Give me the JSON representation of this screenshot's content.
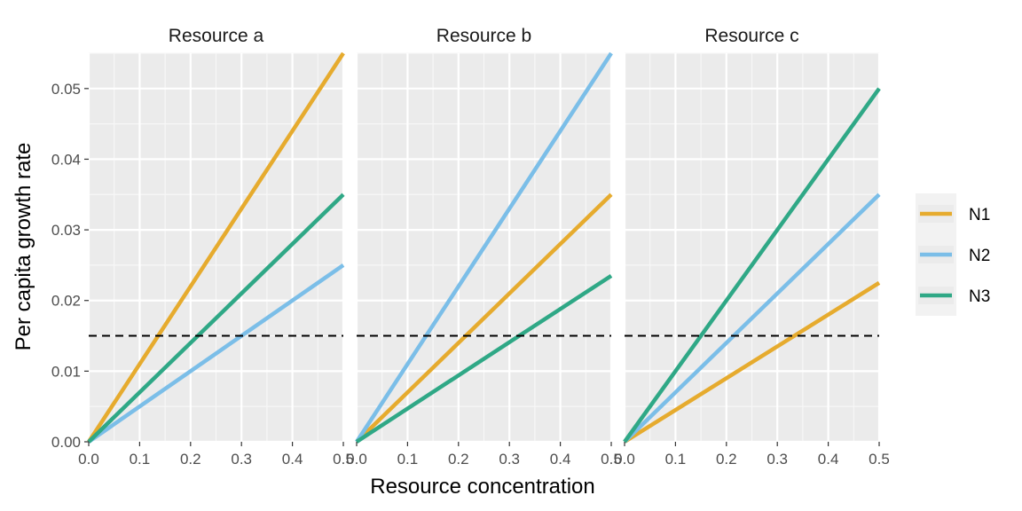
{
  "chart_data": {
    "type": "line",
    "xlabel": "Resource concentration",
    "ylabel": "Per capita growth rate",
    "xlim": [
      0,
      0.5
    ],
    "ylim": [
      0,
      0.055
    ],
    "x_ticks": [
      "0.0",
      "0.1",
      "0.2",
      "0.3",
      "0.4",
      "0.5"
    ],
    "y_ticks": [
      "0.00",
      "0.01",
      "0.02",
      "0.03",
      "0.04",
      "0.05"
    ],
    "x_tick_values": [
      0,
      0.1,
      0.2,
      0.3,
      0.4,
      0.5
    ],
    "y_tick_values": [
      0,
      0.01,
      0.02,
      0.03,
      0.04,
      0.05
    ],
    "hline": 0.015,
    "grid": true,
    "legend_position": "right",
    "legend": [
      {
        "name": "N1",
        "color": "#E6AB2E"
      },
      {
        "name": "N2",
        "color": "#7BBEE8"
      },
      {
        "name": "N3",
        "color": "#2FA886"
      }
    ],
    "panels": [
      {
        "title": "Resource a",
        "series": [
          {
            "name": "N1",
            "x": [
              0,
              0.5
            ],
            "y": [
              0,
              0.055
            ]
          },
          {
            "name": "N2",
            "x": [
              0,
              0.5
            ],
            "y": [
              0,
              0.025
            ]
          },
          {
            "name": "N3",
            "x": [
              0,
              0.5
            ],
            "y": [
              0,
              0.035
            ]
          }
        ]
      },
      {
        "title": "Resource b",
        "series": [
          {
            "name": "N1",
            "x": [
              0,
              0.5
            ],
            "y": [
              0,
              0.035
            ]
          },
          {
            "name": "N2",
            "x": [
              0,
              0.5
            ],
            "y": [
              0,
              0.055
            ]
          },
          {
            "name": "N3",
            "x": [
              0,
              0.5
            ],
            "y": [
              0,
              0.0235
            ]
          }
        ]
      },
      {
        "title": "Resource c",
        "series": [
          {
            "name": "N1",
            "x": [
              0,
              0.5
            ],
            "y": [
              0,
              0.0225
            ]
          },
          {
            "name": "N2",
            "x": [
              0,
              0.5
            ],
            "y": [
              0,
              0.035
            ]
          },
          {
            "name": "N3",
            "x": [
              0,
              0.5
            ],
            "y": [
              0,
              0.05
            ]
          }
        ]
      }
    ]
  }
}
